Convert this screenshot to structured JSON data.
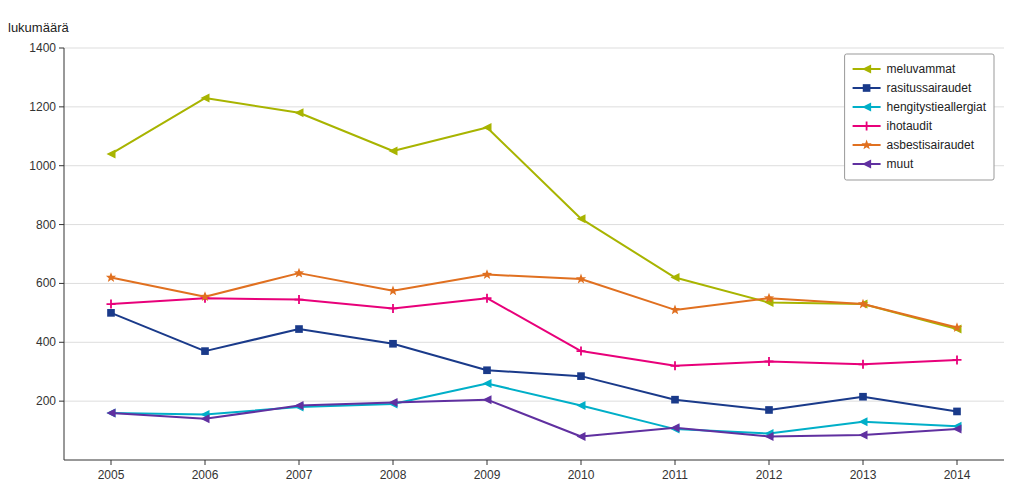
{
  "chart_data": {
    "type": "line",
    "ylabel": "lukumäärä",
    "x": [
      2005,
      2006,
      2007,
      2008,
      2009,
      2010,
      2011,
      2012,
      2013,
      2014
    ],
    "xlim": [
      2004.5,
      2014.5
    ],
    "xticks": [
      2005,
      2006,
      2007,
      2008,
      2009,
      2010,
      2011,
      2012,
      2013,
      2014
    ],
    "ylim": [
      0,
      1400
    ],
    "yticks": [
      200,
      400,
      600,
      800,
      1000,
      1200,
      1400
    ],
    "grid": true,
    "legend": "upper right",
    "series": [
      {
        "name": "meluvammat",
        "color": "#a8b400",
        "marker": "triangle-left",
        "values": [
          1040,
          1230,
          1180,
          1050,
          1130,
          820,
          620,
          535,
          530,
          445
        ]
      },
      {
        "name": "rasitussairaudet",
        "color": "#1a3a8a",
        "marker": "square",
        "values": [
          500,
          370,
          445,
          395,
          305,
          285,
          205,
          170,
          215,
          165
        ]
      },
      {
        "name": "hengitystieallergiat",
        "color": "#00afc8",
        "marker": "triangle-left",
        "values": [
          160,
          155,
          180,
          190,
          260,
          185,
          105,
          90,
          130,
          115
        ]
      },
      {
        "name": "ihotaudit",
        "color": "#e8007a",
        "marker": "plus",
        "values": [
          530,
          550,
          545,
          515,
          550,
          370,
          320,
          335,
          325,
          340
        ]
      },
      {
        "name": "asbestisairaudet",
        "color": "#e07020",
        "marker": "star",
        "values": [
          620,
          555,
          635,
          575,
          630,
          615,
          510,
          550,
          530,
          450
        ]
      },
      {
        "name": "muut",
        "color": "#6030a0",
        "marker": "triangle-left",
        "values": [
          160,
          140,
          185,
          195,
          205,
          80,
          110,
          80,
          85,
          105
        ]
      }
    ]
  }
}
